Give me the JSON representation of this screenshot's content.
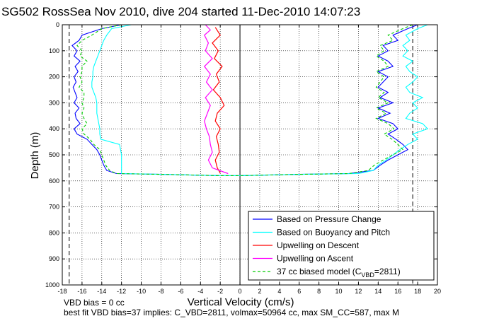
{
  "chart_data": {
    "type": "line",
    "title": "SG502 RossSea Nov 2010, dive 204 started 11-Dec-2010 14:07:23",
    "xlabel": "Vertical Velocity (cm/s)",
    "ylabel": "Depth (m)",
    "xlim": [
      -18,
      20
    ],
    "ylim": [
      0,
      1000
    ],
    "y_reversed": true,
    "grid": "dotted",
    "xticks": [
      "-18",
      "-16",
      "-14",
      "-12",
      "-10",
      "-8",
      "-6",
      "-4",
      "-2",
      "0",
      "2",
      "4",
      "6",
      "8",
      "10",
      "12",
      "14",
      "16",
      "18",
      "20"
    ],
    "yticks": [
      "0",
      "100",
      "200",
      "300",
      "400",
      "500",
      "600",
      "700",
      "800",
      "900",
      "1000"
    ],
    "vlines_dashed": [
      -17.3,
      17.5
    ],
    "zero_line": 0,
    "legend_position": "bottom-right",
    "legend": [
      {
        "label": "Based on Pressure Change",
        "color": "#0000ff",
        "dashed": false
      },
      {
        "label": "Based on Buoyancy and Pitch",
        "color": "#00ffff",
        "dashed": false
      },
      {
        "label": "Upwelling on Descent",
        "color": "#ff0000",
        "dashed": false
      },
      {
        "label": "Upwelling on Ascent",
        "color": "#ff00ff",
        "dashed": false
      },
      {
        "label": "37 cc biased model (C",
        "sub": "VBD",
        "tail": "=2811)",
        "color": "#00cc00",
        "dashed": true
      }
    ],
    "series": [
      {
        "name": "Based on Pressure Change",
        "color": "#0000ff",
        "depth": [
          0,
          15,
          40,
          60,
          80,
          100,
          120,
          140,
          160,
          180,
          200,
          220,
          240,
          260,
          280,
          300,
          320,
          340,
          360,
          380,
          400,
          420,
          440,
          460,
          480,
          500,
          520,
          540,
          560,
          572,
          575,
          580
        ],
        "descent": [
          -12,
          -14,
          -16,
          -16.3,
          -17,
          -16.5,
          -16.8,
          -16.2,
          -16.7,
          -16.4,
          -16.8,
          -16.6,
          -16.9,
          -16.7,
          -16.5,
          -16.8,
          -16.3,
          -16.7,
          -16.6,
          -16.2,
          -16.8,
          -16.5,
          -15.5,
          -15,
          -14.5,
          -14.2,
          -14,
          -13.8,
          -13.5,
          -12.5,
          -8,
          -2
        ],
        "ascent": [
          18,
          17,
          15.5,
          16,
          14.5,
          15,
          14,
          15,
          15.5,
          14,
          15,
          14.5,
          14,
          15,
          14.2,
          15.5,
          14,
          15.2,
          14,
          15.5,
          16,
          15,
          15.8,
          16.5,
          17,
          16,
          15,
          14.2,
          13.5,
          11,
          6,
          0
        ]
      },
      {
        "name": "Based on Buoyancy and Pitch",
        "color": "#00ffff",
        "depth": [
          0,
          15,
          40,
          60,
          80,
          100,
          120,
          140,
          160,
          180,
          200,
          220,
          240,
          260,
          280,
          300,
          320,
          340,
          360,
          380,
          400,
          420,
          440,
          460,
          480,
          500,
          520,
          540,
          560,
          572,
          575,
          580
        ],
        "descent": [
          -11,
          -13,
          -13.5,
          -13.8,
          -14,
          -14.2,
          -14.4,
          -14.6,
          -14.8,
          -14.9,
          -14.9,
          -15,
          -15,
          -14.8,
          -14.6,
          -14.5,
          -14.5,
          -14.5,
          -14.4,
          -14.3,
          -14.2,
          -14.2,
          -14.1,
          -12.2,
          -12.1,
          -12,
          -12,
          -12,
          -12,
          -12,
          -8,
          -2
        ],
        "ascent": [
          19,
          18,
          16.8,
          17.2,
          16.5,
          17,
          16.5,
          17.5,
          16.8,
          17.2,
          18,
          17.5,
          16.8,
          17.2,
          18.5,
          17.5,
          18,
          17.2,
          16.8,
          18.5,
          19,
          17.5,
          18,
          17,
          16.2,
          15.5,
          14.8,
          14,
          13.5,
          12,
          6,
          0
        ]
      },
      {
        "name": "Upwelling on Descent",
        "color": "#ff0000",
        "depth": [
          10,
          40,
          70,
          100,
          130,
          160,
          190,
          220,
          250,
          280,
          310,
          340,
          370,
          400,
          430,
          460,
          490,
          520,
          550,
          570
        ],
        "values": [
          -2.5,
          -2,
          -2.8,
          -2.2,
          -2.6,
          -1.8,
          -2.4,
          -2.1,
          -2.7,
          -2,
          -1.6,
          -2.3,
          -2.5,
          -2,
          -2.4,
          -2.2,
          -2.1,
          -2.5,
          -2.3,
          -2
        ]
      },
      {
        "name": "Upwelling on Ascent",
        "color": "#ff00ff",
        "depth": [
          0,
          20,
          40,
          70,
          100,
          130,
          160,
          190,
          220,
          250,
          280,
          310,
          340,
          370,
          400,
          430,
          460,
          490,
          520,
          550,
          572
        ],
        "values": [
          -3.5,
          -3,
          -3.6,
          -3.2,
          -3.5,
          -2.8,
          -3.6,
          -3,
          -3.4,
          -2.8,
          -3.5,
          -3,
          -3.3,
          -3.6,
          -3.4,
          -3.1,
          -3,
          -2.8,
          -3.2,
          -2.8,
          -1.2
        ]
      },
      {
        "name": "37 cc biased model (CVBD=2811)",
        "color": "#00cc00",
        "depth": [
          0,
          15,
          40,
          60,
          80,
          100,
          120,
          140,
          160,
          180,
          200,
          220,
          240,
          260,
          280,
          300,
          320,
          340,
          360,
          380,
          400,
          420,
          440,
          460,
          480,
          500,
          520,
          540,
          560,
          572,
          575,
          580
        ],
        "descent": [
          -12,
          -14,
          -15,
          -16,
          -16.5,
          -16,
          -16.2,
          -15.5,
          -16,
          -16,
          -16.2,
          -16,
          -16.3,
          -15.8,
          -15.8,
          -16,
          -15.8,
          -16,
          -15.8,
          -15.5,
          -16,
          -15.8,
          -15.2,
          -14.8,
          -14.2,
          -14,
          -13.8,
          -13.6,
          -13.2,
          -12.5,
          -8,
          -2
        ],
        "ascent": [
          17.5,
          16.5,
          15,
          15.5,
          14.2,
          14.6,
          13.8,
          14.6,
          15,
          13.8,
          14.6,
          14.2,
          13.8,
          14.6,
          14,
          15,
          13.8,
          14.8,
          13.8,
          15,
          15.6,
          14.6,
          15.4,
          16,
          16.5,
          15.5,
          14.5,
          13.6,
          13,
          11,
          6,
          0
        ]
      }
    ]
  },
  "footer": {
    "line1": "VBD bias = 0 cc",
    "line2": "best fit VBD bias=37 implies: C_VBD=2811, volmax=50964 cc, max SM_CC=587, max M"
  }
}
